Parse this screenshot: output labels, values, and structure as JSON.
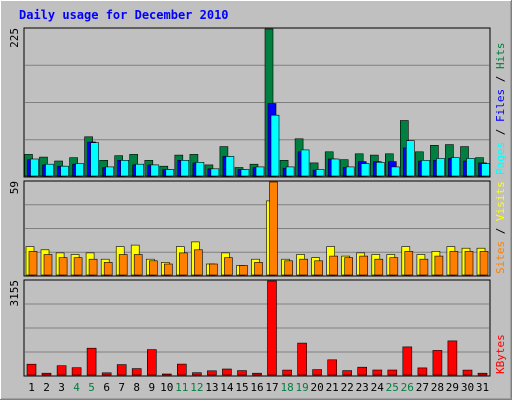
{
  "chart_data": {
    "type": "bar",
    "title": "Daily usage for December 2010",
    "days": [
      "1",
      "2",
      "3",
      "4",
      "5",
      "6",
      "7",
      "8",
      "9",
      "10",
      "11",
      "12",
      "13",
      "14",
      "15",
      "16",
      "17",
      "18",
      "19",
      "20",
      "21",
      "22",
      "23",
      "24",
      "25",
      "26",
      "27",
      "28",
      "29",
      "30",
      "31"
    ],
    "weekend_days": [
      "4",
      "5",
      "11",
      "12",
      "18",
      "19",
      "25",
      "26"
    ],
    "panels": [
      {
        "name": "hits-files-pages",
        "ymax_label": "225",
        "ymax": 225,
        "series": [
          {
            "name": "Hits",
            "color": "#008040",
            "values": [
              33,
              29,
              23,
              28,
              60,
              24,
              31,
              33,
              24,
              15,
              32,
              33,
              17,
              45,
              13,
              18,
              225,
              24,
              57,
              20,
              37,
              25,
              34,
              32,
              34,
              85,
              37,
              47,
              48,
              45,
              28
            ]
          },
          {
            "name": "Files",
            "color": "#0000ff",
            "values": [
              25,
              17,
              15,
              18,
              52,
              13,
              24,
              17,
              17,
              10,
              24,
              20,
              11,
              30,
              10,
              13,
              111,
              12,
              37,
              9,
              26,
              13,
              22,
              22,
              22,
              43,
              23,
              24,
              27,
              23,
              20
            ]
          },
          {
            "name": "Pages",
            "color": "#00ffff",
            "values": [
              26,
              18,
              15,
              19,
              51,
              14,
              24,
              18,
              17,
              10,
              24,
              21,
              11,
              30,
              10,
              14,
              93,
              14,
              40,
              10,
              26,
              14,
              19,
              21,
              14,
              54,
              24,
              27,
              28,
              27,
              19
            ]
          }
        ]
      },
      {
        "name": "visits-sites",
        "ymax_label": "59",
        "ymax": 59,
        "series": [
          {
            "name": "Visits",
            "color": "#ffff00",
            "values": [
              18,
              16,
              14,
              13,
              14,
              10,
              18,
              19,
              10,
              8,
              18,
              21,
              7,
              14,
              6,
              10,
              47,
              10,
              13,
              11,
              18,
              12,
              14,
              13,
              13,
              18,
              13,
              15,
              18,
              17,
              17
            ]
          },
          {
            "name": "Sites",
            "color": "#ff8000",
            "values": [
              15,
              13,
              11,
              11,
              10,
              8,
              13,
              13,
              9,
              7,
              14,
              16,
              7,
              11,
              6,
              8,
              59,
              9,
              10,
              9,
              12,
              11,
              12,
              10,
              11,
              15,
              10,
              12,
              15,
              15,
              15
            ]
          }
        ]
      },
      {
        "name": "kbytes",
        "ymax_label": "3155",
        "ymax": 3155,
        "series": [
          {
            "name": "KBytes",
            "color": "#ff0000",
            "values": [
              361,
              60,
              313,
              246,
              898,
              73,
              350,
              216,
              851,
              20,
              365,
              76,
              141,
              202,
              147,
              60,
              3155,
              164,
              1072,
              181,
              511,
              148,
              262,
              169,
              168,
              943,
              239,
              826,
              1143,
              164,
              62
            ]
          }
        ]
      }
    ],
    "right_labels": [
      [
        {
          "text": "Pages",
          "color": "#00ffff"
        },
        {
          "text": " / ",
          "color": "#000000"
        },
        {
          "text": "Files",
          "color": "#0000ff"
        },
        {
          "text": " / ",
          "color": "#000000"
        },
        {
          "text": "Hits",
          "color": "#008040"
        }
      ],
      [
        {
          "text": "Sites",
          "color": "#ff8000"
        },
        {
          "text": " / ",
          "color": "#000000"
        },
        {
          "text": "Visits",
          "color": "#ffff00"
        }
      ],
      [
        {
          "text": "KBytes",
          "color": "#ff0000"
        }
      ]
    ],
    "grid": true,
    "colors": {
      "background": "#c0c0c0",
      "plot": "#c0c0c0",
      "grid": "#808080",
      "title": "#0000ff",
      "weekend_label": "#008040",
      "weekday_label": "#000000"
    }
  }
}
